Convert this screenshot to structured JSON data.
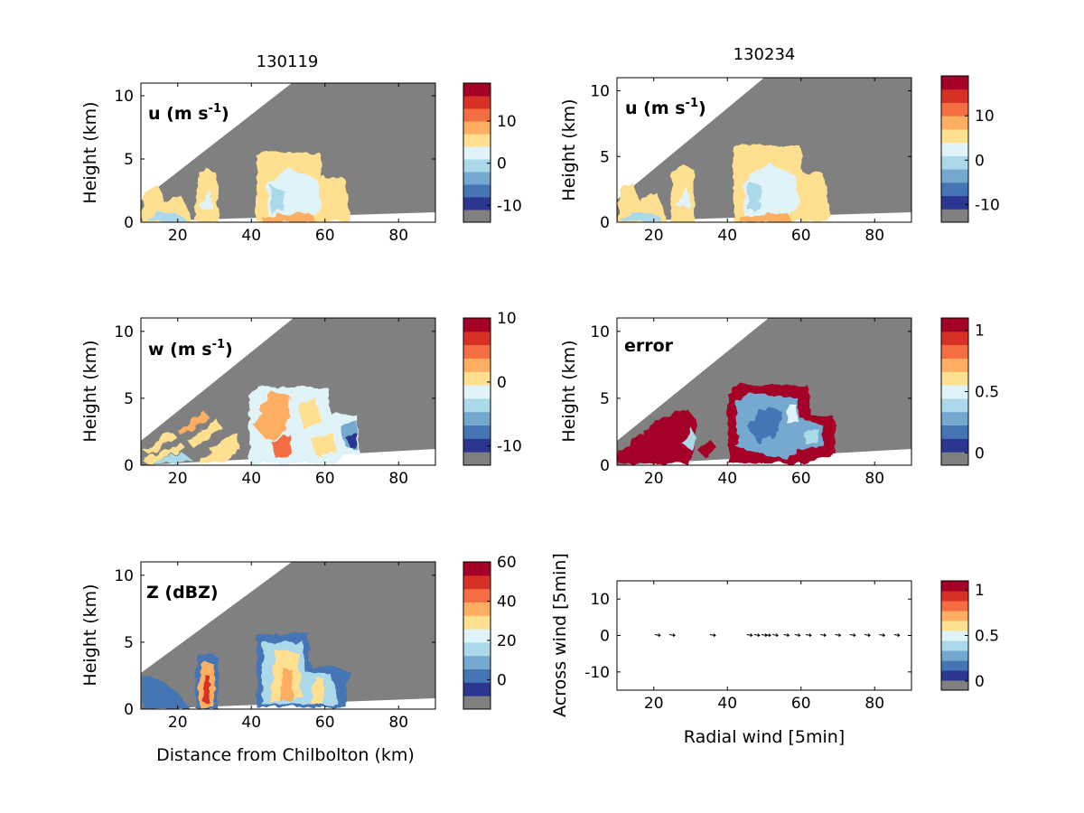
{
  "figure": {
    "column_titles": [
      "130119",
      "130234"
    ],
    "colormap": [
      "#808080",
      "#2b3691",
      "#4575b4",
      "#74a9cf",
      "#abd9e9",
      "#e0f3f8",
      "#fee090",
      "#fdae61",
      "#f46d43",
      "#d73027",
      "#a50026"
    ]
  },
  "chart_data": [
    {
      "type": "heatmap",
      "panel": "u-130119",
      "label": "u (m s",
      "label_sup": "-1",
      "label_end": ")",
      "ylabel": "Height (km)",
      "xlabel": "",
      "xlim": [
        10,
        90
      ],
      "ylim": [
        0,
        11
      ],
      "xticks": [
        "20",
        "40",
        "60",
        "80"
      ],
      "yticks": [
        "0",
        "5",
        "10"
      ],
      "clim": [
        -14,
        19
      ],
      "cticks": [
        {
          "v": 10,
          "t": "10"
        },
        {
          "v": 0,
          "t": "0"
        },
        {
          "v": -10,
          "t": "-10"
        }
      ],
      "features": [
        {
          "x0": 42,
          "x1": 67,
          "ymax": 5.5,
          "value": 5
        },
        {
          "x0": 27,
          "x1": 33,
          "ymax": 4,
          "value": 6
        },
        {
          "x0": 10,
          "x1": 24,
          "ymax": 2.5,
          "value": 4
        }
      ]
    },
    {
      "type": "heatmap",
      "panel": "u-130234",
      "label": "u (m s",
      "label_sup": "-1",
      "label_end": ")",
      "ylabel": "Height (km)",
      "xlabel": "",
      "xlim": [
        10,
        90
      ],
      "ylim": [
        0,
        11
      ],
      "xticks": [
        "20",
        "40",
        "60",
        "80"
      ],
      "yticks": [
        "0",
        "5",
        "10"
      ],
      "clim": [
        -14,
        19
      ],
      "cticks": [
        {
          "v": 10,
          "t": "10"
        },
        {
          "v": 0,
          "t": "0"
        },
        {
          "v": -10,
          "t": "-10"
        }
      ],
      "features": [
        {
          "x0": 42,
          "x1": 69,
          "ymax": 5.5,
          "value": 5
        },
        {
          "x0": 27,
          "x1": 33,
          "ymax": 4,
          "value": 6
        },
        {
          "x0": 10,
          "x1": 24,
          "ymax": 2.5,
          "value": 4
        }
      ]
    },
    {
      "type": "heatmap",
      "panel": "w-130119",
      "label": "w (m s",
      "label_sup": "-1",
      "label_end": ")",
      "ylabel": "Height (km)",
      "xlabel": "",
      "xlim": [
        10,
        90
      ],
      "ylim": [
        0,
        11
      ],
      "xticks": [
        "20",
        "40",
        "60",
        "80"
      ],
      "yticks": [
        "0",
        "5",
        "10"
      ],
      "clim": [
        -13,
        10
      ],
      "cticks": [
        {
          "v": 10,
          "t": "10"
        },
        {
          "v": 0,
          "t": "0"
        },
        {
          "v": -10,
          "t": "-10"
        }
      ],
      "features": [
        {
          "x0": 42,
          "x1": 70,
          "ymax": 5.5,
          "value": 2
        },
        {
          "x0": 10,
          "x1": 36,
          "ymax": 2.5,
          "value": 3
        }
      ]
    },
    {
      "type": "heatmap",
      "panel": "error-130234",
      "label": "error",
      "label_sup": "",
      "label_end": "",
      "ylabel": "Height (km)",
      "xlabel": "",
      "xlim": [
        10,
        90
      ],
      "ylim": [
        0,
        11
      ],
      "xticks": [
        "20",
        "40",
        "60",
        "80"
      ],
      "yticks": [
        "0",
        "5",
        "10"
      ],
      "clim": [
        -0.1,
        1.1
      ],
      "cticks": [
        {
          "v": 1,
          "t": "1"
        },
        {
          "v": 0.5,
          "t": "0.5"
        },
        {
          "v": 0,
          "t": "0"
        }
      ],
      "features": [
        {
          "x0": 44,
          "x1": 70,
          "ymax": 6,
          "value": 0.3
        },
        {
          "x0": 10,
          "x1": 36,
          "ymax": 3,
          "value": 1
        }
      ]
    },
    {
      "type": "heatmap",
      "panel": "Z-130119",
      "label": "Z (dBZ)",
      "label_sup": "",
      "label_end": "",
      "ylabel": "Height (km)",
      "xlabel": "Distance from Chilbolton (km)",
      "xlim": [
        10,
        90
      ],
      "ylim": [
        0,
        11
      ],
      "xticks": [
        "20",
        "40",
        "60",
        "80"
      ],
      "yticks": [
        "0",
        "5",
        "10"
      ],
      "clim": [
        -15,
        60
      ],
      "cticks": [
        {
          "v": 60,
          "t": "60"
        },
        {
          "v": 40,
          "t": "40"
        },
        {
          "v": 20,
          "t": "20"
        },
        {
          "v": 0,
          "t": "0"
        }
      ],
      "features": [
        {
          "x0": 42,
          "x1": 69,
          "ymax": 5.5,
          "value": 20
        },
        {
          "x0": 27,
          "x1": 31,
          "ymax": 4,
          "value": 30
        },
        {
          "x0": 10,
          "x1": 24,
          "ymax": 2.5,
          "value": 0
        }
      ]
    },
    {
      "type": "scatter",
      "panel": "wind-quiver",
      "label": "",
      "xlabel": "Radial wind [5min]",
      "ylabel": "Across wind [5min]",
      "xlim": [
        10,
        90
      ],
      "ylim": [
        -15,
        15
      ],
      "xticks": [
        "20",
        "40",
        "60",
        "80"
      ],
      "yticks": [
        {
          "v": 10,
          "t": "10"
        },
        {
          "v": 0,
          "t": "0"
        },
        {
          "v": -10,
          "t": "-10"
        }
      ],
      "x": [
        21,
        25,
        36,
        46,
        48,
        50,
        51,
        53,
        56,
        59,
        62,
        66,
        70,
        74,
        78,
        82,
        86
      ],
      "y": [
        0,
        0,
        0,
        0,
        0,
        0,
        0,
        0,
        0,
        0,
        0,
        0,
        0,
        0,
        0,
        0,
        0
      ],
      "clim": [
        -0.1,
        1.1
      ],
      "cticks": [
        {
          "v": 1,
          "t": "1"
        },
        {
          "v": 0.5,
          "t": "0.5"
        },
        {
          "v": 0,
          "t": "0"
        }
      ]
    }
  ]
}
